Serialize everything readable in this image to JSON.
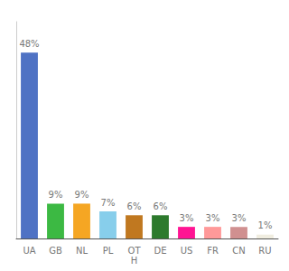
{
  "chart_data": {
    "type": "bar",
    "categories": [
      "UA",
      "GB",
      "NL",
      "PL",
      "OT\nH",
      "DE",
      "US",
      "FR",
      "CN",
      "RU"
    ],
    "values": [
      48,
      9,
      9,
      7,
      6,
      6,
      3,
      3,
      3,
      1
    ],
    "value_labels": [
      "48%",
      "9%",
      "9%",
      "7%",
      "6%",
      "6%",
      "3%",
      "3%",
      "3%",
      "1%"
    ],
    "colors": [
      "#4f72c4",
      "#3cb943",
      "#f5a623",
      "#87ceeb",
      "#c07820",
      "#2d7a2d",
      "#ff1493",
      "#ff9999",
      "#d09090",
      "#f0ede0"
    ],
    "ylim": [
      0,
      56
    ],
    "grid": false,
    "data_labels": true,
    "tick_labels": "x"
  }
}
